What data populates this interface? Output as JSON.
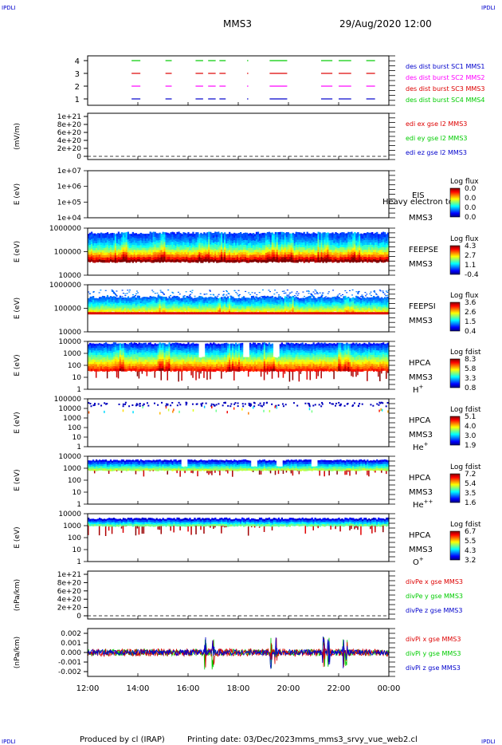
{
  "corner_labels": {
    "tl": "IPDLI",
    "tr": "IPDLI",
    "bl": "IPDLI",
    "br": "IPDLI"
  },
  "header": {
    "spacecraft": "MMS3",
    "datetime": "29/Aug/2020 12:00"
  },
  "footer": {
    "produced_by": "Produced by cl (IRAP)",
    "printing_date": "Printing date: 03/Dec/2023",
    "script_name": "mms_mms3_srvy_vue_web2.cl"
  },
  "colors": {
    "blue": "#0000cc",
    "magenta": "#ff00ff",
    "red": "#dd0000",
    "green": "#00cc00",
    "black": "#000000"
  },
  "chart_data": [
    {
      "id": "burst",
      "type": "timeline",
      "yticks": [
        "1",
        "2",
        "3",
        "4"
      ],
      "legend": [
        {
          "text": "des dist burst SC1 MMS1",
          "color": "#0000cc"
        },
        {
          "text": "des dist burst SC2 MMS2",
          "color": "#ff00ff"
        },
        {
          "text": "des dist burst SC3 MMS3",
          "color": "#dd0000"
        },
        {
          "text": "des dist burst SC4 MMS4",
          "color": "#00cc00"
        }
      ],
      "intervals_hours": [
        [
          13.75,
          14.1
        ],
        [
          15.1,
          15.35
        ],
        [
          16.3,
          16.6
        ],
        [
          16.8,
          17.1
        ],
        [
          17.25,
          17.5
        ],
        [
          18.35,
          18.4
        ],
        [
          19.25,
          19.95
        ],
        [
          21.3,
          21.75
        ],
        [
          22.0,
          22.5
        ],
        [
          23.1,
          23.45
        ]
      ]
    },
    {
      "id": "edi",
      "type": "line",
      "ylabel": "(mV/m)",
      "yticks": [
        "0",
        "2e+20",
        "4e+20",
        "6e+20",
        "8e+20",
        "1e+21"
      ],
      "legend": [
        {
          "text": "edi ex gse l2 MMS3",
          "color": "#dd0000"
        },
        {
          "text": "edi ey gse l2 MMS3",
          "color": "#00cc00"
        },
        {
          "text": "edi ez gse l2 MMS3",
          "color": "#0000cc"
        }
      ]
    },
    {
      "id": "eis",
      "type": "heatmap",
      "ylabel": "E (eV)",
      "yticks": [
        "1e+04",
        "1e+05",
        "1e+06",
        "1e+07"
      ],
      "labels": [
        "EIS",
        "MMS3"
      ],
      "overlay": "Heavy electron to",
      "colorbar_title": "Log flux",
      "colorbar_ticks": [
        "0.0",
        "0.0",
        "0.0",
        "0.0"
      ]
    },
    {
      "id": "feepse",
      "type": "heatmap",
      "ylabel": "E (eV)",
      "yticks": [
        "10000",
        "100000",
        "1000000"
      ],
      "labels": [
        "FEEPSE",
        "MMS3"
      ],
      "colorbar_title": "Log flux",
      "colorbar_ticks": [
        "4.3",
        "2.7",
        "1.1",
        "-0.4"
      ]
    },
    {
      "id": "feepsi",
      "type": "heatmap",
      "ylabel": "E (eV)",
      "yticks": [
        "10000",
        "100000",
        "1000000"
      ],
      "labels": [
        "FEEPSI",
        "MMS3"
      ],
      "colorbar_title": "Log flux",
      "colorbar_ticks": [
        "3.6",
        "2.6",
        "1.5",
        "0.4"
      ]
    },
    {
      "id": "hpca_h",
      "type": "heatmap",
      "ylabel": "E (eV)",
      "yticks": [
        "1",
        "10",
        "100",
        "1000",
        "10000"
      ],
      "labels": [
        "HPCA",
        "MMS3"
      ],
      "species": "H",
      "species_charge": "+",
      "colorbar_title": "Log fdist",
      "colorbar_ticks": [
        "8.3",
        "5.8",
        "3.3",
        "0.8"
      ]
    },
    {
      "id": "hpca_he",
      "type": "heatmap",
      "ylabel": "E (eV)",
      "yticks": [
        "1",
        "10",
        "100",
        "1000",
        "10000",
        "100000"
      ],
      "labels": [
        "HPCA",
        "MMS3"
      ],
      "species": "He",
      "species_charge": "+",
      "colorbar_title": "Log fdist",
      "colorbar_ticks": [
        "5.1",
        "4.0",
        "3.0",
        "1.9"
      ]
    },
    {
      "id": "hpca_hepp",
      "type": "heatmap",
      "ylabel": "E (eV)",
      "yticks": [
        "1",
        "10",
        "100",
        "1000",
        "10000"
      ],
      "labels": [
        "HPCA",
        "MMS3"
      ],
      "species": "He",
      "species_charge": "++",
      "colorbar_title": "Log fdist",
      "colorbar_ticks": [
        "7.2",
        "5.4",
        "3.5",
        "1.6"
      ]
    },
    {
      "id": "hpca_o",
      "type": "heatmap",
      "ylabel": "E (eV)",
      "yticks": [
        "1",
        "10",
        "100",
        "1000",
        "10000"
      ],
      "labels": [
        "HPCA",
        "MMS3"
      ],
      "species": "O",
      "species_charge": "+",
      "colorbar_title": "Log fdist",
      "colorbar_ticks": [
        "6.7",
        "5.5",
        "4.3",
        "3.2"
      ]
    },
    {
      "id": "divpe",
      "type": "line",
      "ylabel": "(nPa/km)",
      "yticks": [
        "0",
        "2e+20",
        "4e+20",
        "6e+20",
        "8e+20",
        "1e+21"
      ],
      "legend": [
        {
          "text": "divPe x gse MMS3",
          "color": "#dd0000"
        },
        {
          "text": "divPe y gse MMS3",
          "color": "#00cc00"
        },
        {
          "text": "divPe z gse MMS3",
          "color": "#0000cc"
        }
      ]
    },
    {
      "id": "divpi",
      "type": "line",
      "ylabel": "(nPa/km)",
      "yticks": [
        "-0.002",
        "-0.001",
        "0.000",
        "0.001",
        "0.002"
      ],
      "ylim": [
        -0.0025,
        0.0025
      ],
      "legend": [
        {
          "text": "divPi x gse MMS3",
          "color": "#dd0000"
        },
        {
          "text": "divPi y gse MMS3",
          "color": "#00cc00"
        },
        {
          "text": "divPi z gse MMS3",
          "color": "#0000cc"
        }
      ]
    }
  ],
  "xaxis": {
    "ticks": [
      "12:00",
      "14:00",
      "16:00",
      "18:00",
      "20:00",
      "22:00",
      "00:00"
    ],
    "range_hours": [
      12,
      24
    ]
  }
}
